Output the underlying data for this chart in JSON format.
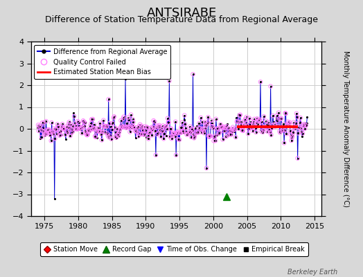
{
  "title": "ANTSIRABE",
  "subtitle": "Difference of Station Temperature Data from Regional Average",
  "ylabel": "Monthly Temperature Anomaly Difference (°C)",
  "xlim": [
    1973.0,
    2016.0
  ],
  "ylim": [
    -4,
    4
  ],
  "yticks": [
    -4,
    -3,
    -2,
    -1,
    0,
    1,
    2,
    3,
    4
  ],
  "xticks": [
    1975,
    1980,
    1985,
    1990,
    1995,
    2000,
    2005,
    2010,
    2015
  ],
  "bias_start": 2003.5,
  "bias_end": 2012.5,
  "bias_value": 0.1,
  "record_gap_x": 2002.0,
  "record_gap_y": -3.1,
  "big_spike_year": 1976.5,
  "big_spike_value": -3.2,
  "background_color": "#d8d8d8",
  "plot_bg_color": "#ffffff",
  "grid_color": "#cccccc",
  "line_color": "#0000cc",
  "qc_color": "#ff80ff",
  "bias_color": "#ff0000",
  "title_fontsize": 13,
  "subtitle_fontsize": 9,
  "watermark": "Berkeley Earth",
  "data_seed": 42
}
